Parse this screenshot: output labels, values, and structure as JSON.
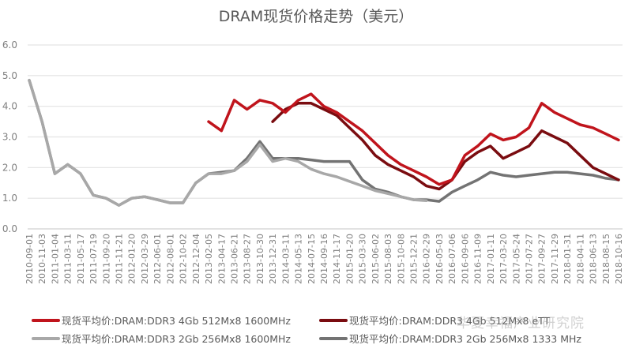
{
  "chart_data": {
    "type": "line",
    "title": "DRAM现货价格走势（美元）",
    "xlabel": "",
    "ylabel": "",
    "ylim": [
      0,
      6
    ],
    "yticks": [
      "0.0",
      "1.0",
      "2.0",
      "3.0",
      "4.0",
      "5.0",
      "6.0"
    ],
    "grid": true,
    "legend_position": "bottom",
    "categories": [
      "2010-09-01",
      "2010-11-03",
      "2011-01-04",
      "2011-03-11",
      "2011-05-17",
      "2011-07-19",
      "2011-09-20",
      "2011-11-21",
      "2012-01-20",
      "2012-03-29",
      "2012-06-01",
      "2012-08-01",
      "2012-10-02",
      "2012-12-04",
      "2013-02-05",
      "2013-04-17",
      "2013-06-21",
      "2013-08-27",
      "2013-10-30",
      "2013-12-31",
      "2014-03-11",
      "2014-05-13",
      "2014-07-15",
      "2014-09-16",
      "2014-11-17",
      "2015-01-20",
      "2015-03-30",
      "2015-06-02",
      "2015-08-03",
      "2015-10-08",
      "2015-12-21",
      "2016-02-29",
      "2016-05-03",
      "2016-07-06",
      "2016-09-06",
      "2016-11-09",
      "2017-01-11",
      "2017-03-20",
      "2017-05-24",
      "2017-07-27",
      "2017-09-27",
      "2017-11-29",
      "2018-01-31",
      "2018-04-11",
      "2018-06-13",
      "2018-08-15",
      "2018-10-16"
    ],
    "series": [
      {
        "name": "现货平均价:DRAM:DDR3 4Gb 512Mx8 1600MHz",
        "color": "#c0141c",
        "values": [
          null,
          null,
          null,
          null,
          null,
          null,
          null,
          null,
          null,
          null,
          null,
          null,
          null,
          null,
          3.5,
          3.2,
          4.2,
          3.9,
          4.2,
          4.1,
          3.8,
          4.2,
          4.4,
          4.0,
          3.8,
          3.5,
          3.2,
          2.8,
          2.4,
          2.1,
          1.9,
          1.7,
          1.45,
          1.6,
          2.4,
          2.7,
          3.1,
          2.9,
          3.0,
          3.3,
          4.1,
          3.8,
          3.6,
          3.4,
          3.3,
          3.1,
          2.9
        ]
      },
      {
        "name": "现货平均价:DRAM:DDR3 4Gb 512Mx8 eTT",
        "color": "#7a0c10",
        "values": [
          null,
          null,
          null,
          null,
          null,
          null,
          null,
          null,
          null,
          null,
          null,
          null,
          null,
          null,
          null,
          null,
          null,
          null,
          null,
          3.5,
          3.9,
          4.1,
          4.1,
          3.9,
          3.7,
          3.3,
          2.9,
          2.4,
          2.1,
          1.9,
          1.7,
          1.4,
          1.3,
          1.6,
          2.2,
          2.5,
          2.7,
          2.3,
          2.5,
          2.7,
          3.2,
          3.0,
          2.8,
          2.4,
          2.0,
          1.8,
          1.6
        ]
      },
      {
        "name": "现货平均价:DRAM:DDR3 2Gb 256Mx8 1600MHz",
        "color": "#a8a8a8",
        "values": [
          4.85,
          3.5,
          1.8,
          2.1,
          1.8,
          1.1,
          1.0,
          0.77,
          1.0,
          1.05,
          0.95,
          0.85,
          0.85,
          1.5,
          1.8,
          1.8,
          1.9,
          2.2,
          2.75,
          2.2,
          2.3,
          2.2,
          1.95,
          1.8,
          1.7,
          1.55,
          1.4,
          1.25,
          1.15,
          1.05,
          0.95,
          0.92,
          null,
          null,
          null,
          null,
          null,
          null,
          null,
          null,
          null,
          null,
          null,
          null,
          null,
          null,
          null
        ]
      },
      {
        "name": "现货平均价:DRAM:DDR3 2Gb 256Mx8 1333 MHz",
        "color": "#737373",
        "values": [
          4.85,
          3.5,
          1.8,
          2.1,
          1.8,
          1.1,
          1.0,
          0.77,
          1.0,
          1.05,
          0.95,
          0.85,
          0.85,
          1.5,
          1.8,
          1.85,
          1.9,
          2.3,
          2.85,
          2.3,
          2.3,
          2.3,
          2.25,
          2.2,
          2.2,
          2.2,
          1.6,
          1.3,
          1.2,
          1.05,
          0.95,
          0.95,
          0.9,
          1.2,
          1.4,
          1.6,
          1.85,
          1.75,
          1.7,
          1.75,
          1.8,
          1.85,
          1.85,
          1.8,
          1.75,
          1.65,
          1.6
        ]
      }
    ]
  },
  "watermark": "华夏幸福产业研究院"
}
